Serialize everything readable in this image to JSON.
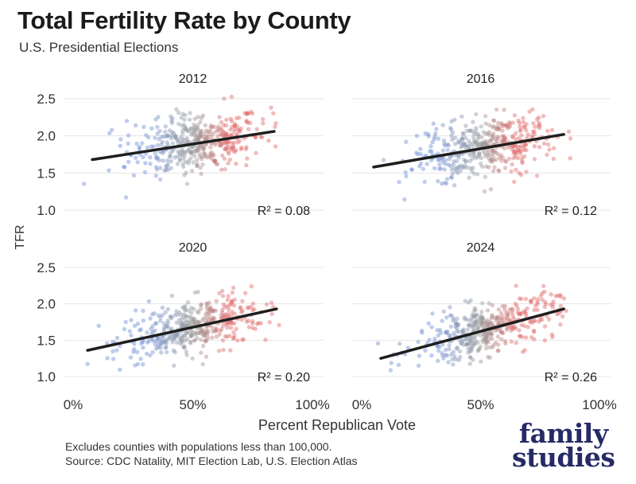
{
  "title": "Total Fertility Rate by County",
  "subtitle": "U.S. Presidential Elections",
  "footnote": {
    "line1": "Excludes counties with populations less than 100,000.",
    "line2": "Source: CDC Natality, MIT Election Lab, U.S. Election Atlas"
  },
  "logo": {
    "line1": "family",
    "line2": "studies"
  },
  "colors": {
    "democrat": "#6e8ed6",
    "neutral": "#9a9a9a",
    "republican": "#e06a6a",
    "trend": "#1e1e1e",
    "grid": "#e6e6e6",
    "logo": "#262a66"
  },
  "chart_data": {
    "type": "scatter",
    "xlabel": "Percent Republican Vote",
    "ylabel": "TFR",
    "xlim": [
      0,
      100
    ],
    "ylim": [
      0.95,
      2.6
    ],
    "x_ticks": [
      "0%",
      "50%",
      "100%"
    ],
    "y_ticks": [
      "1.0",
      "1.5",
      "2.0",
      "2.5"
    ],
    "grid": "horizontal",
    "panels": [
      {
        "name": "2012",
        "r2_label": "R² = 0.08",
        "trend": {
          "x": [
            8,
            84
          ],
          "y": [
            1.68,
            2.06
          ]
        },
        "spread": {
          "x_mean": 52,
          "x_sd": 14,
          "y_sd": 0.2
        }
      },
      {
        "name": "2016",
        "r2_label": "R² = 0.12",
        "trend": {
          "x": [
            5,
            85
          ],
          "y": [
            1.58,
            2.02
          ]
        },
        "spread": {
          "x_mean": 52,
          "x_sd": 15,
          "y_sd": 0.2
        }
      },
      {
        "name": "2020",
        "r2_label": "R² = 0.20",
        "trend": {
          "x": [
            6,
            85
          ],
          "y": [
            1.36,
            1.93
          ]
        },
        "spread": {
          "x_mean": 50,
          "x_sd": 15,
          "y_sd": 0.18
        }
      },
      {
        "name": "2024",
        "r2_label": "R² = 0.26",
        "trend": {
          "x": [
            8,
            85
          ],
          "y": [
            1.25,
            1.93
          ]
        },
        "spread": {
          "x_mean": 52,
          "x_sd": 15,
          "y_sd": 0.17
        }
      }
    ]
  }
}
